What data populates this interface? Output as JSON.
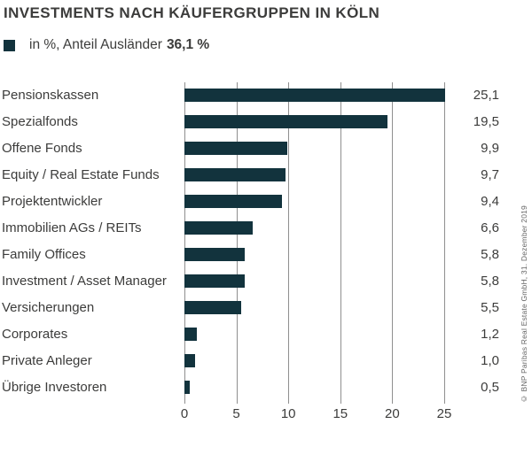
{
  "title": "INVESTMENTS NACH KÄUFERGRUPPEN IN KÖLN",
  "legend": {
    "label": "in %, Anteil Ausländer",
    "bold_value": "36,1 %"
  },
  "copyright": "© BNP Paribas Real Estate GmbH, 31. Dezember 2019",
  "colors": {
    "bar": "#12333d",
    "grid": "#8f8f8f",
    "text": "#3c3c3b",
    "muted": "#666666",
    "background": "#ffffff"
  },
  "chart_data": {
    "type": "bar",
    "orientation": "horizontal",
    "title": "INVESTMENTS NACH KÄUFERGRUPPEN IN KÖLN",
    "unit": "%",
    "categories": [
      "Pensionskassen",
      "Spezialfonds",
      "Offene Fonds",
      "Equity / Real Estate Funds",
      "Projektentwickler",
      "Immobilien AGs / REITs",
      "Family Offices",
      "Investment / Asset Manager",
      "Versicherungen",
      "Corporates",
      "Private Anleger",
      "Übrige Investoren"
    ],
    "values": [
      25.1,
      19.5,
      9.9,
      9.7,
      9.4,
      6.6,
      5.8,
      5.8,
      5.5,
      1.2,
      1.0,
      0.5
    ],
    "value_labels": [
      "25,1",
      "19,5",
      "9,9",
      "9,7",
      "9,4",
      "6,6",
      "5,8",
      "5,8",
      "5,5",
      "1,2",
      "1,0",
      "0,5"
    ],
    "xlabel": "",
    "ylabel": "",
    "xlim": [
      0,
      25
    ],
    "xticks": [
      0,
      5,
      10,
      15,
      20,
      25
    ],
    "grid": true,
    "legend_position": "top-left",
    "anteil_auslaender_percent": "36,1 %"
  }
}
